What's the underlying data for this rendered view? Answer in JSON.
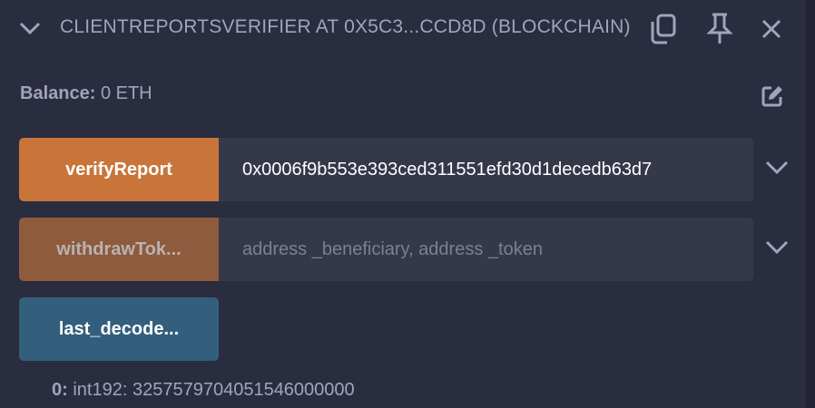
{
  "header": {
    "title": "CLIENTREPORTSVERIFIER AT 0X5C3...CCD8D (BLOCKCHAIN)",
    "icons": [
      "chevron-down-icon",
      "copy-icon",
      "pin-icon",
      "close-icon"
    ]
  },
  "balance": {
    "label": "Balance:",
    "value": "0 ETH"
  },
  "functions": [
    {
      "label": "verifyReport",
      "value": "0x0006f9b553e393ced311551efd30d1decedb63d7",
      "placeholder": "",
      "color": "#c97539"
    },
    {
      "label": "withdrawTok...",
      "value": "",
      "placeholder": "address _beneficiary, address _token",
      "color": "#8e5b3d"
    },
    {
      "label": "last_decode...",
      "color": "#335f7c"
    }
  ],
  "output": {
    "index": "0:",
    "value": "int192: 3257579704051546000000"
  }
}
